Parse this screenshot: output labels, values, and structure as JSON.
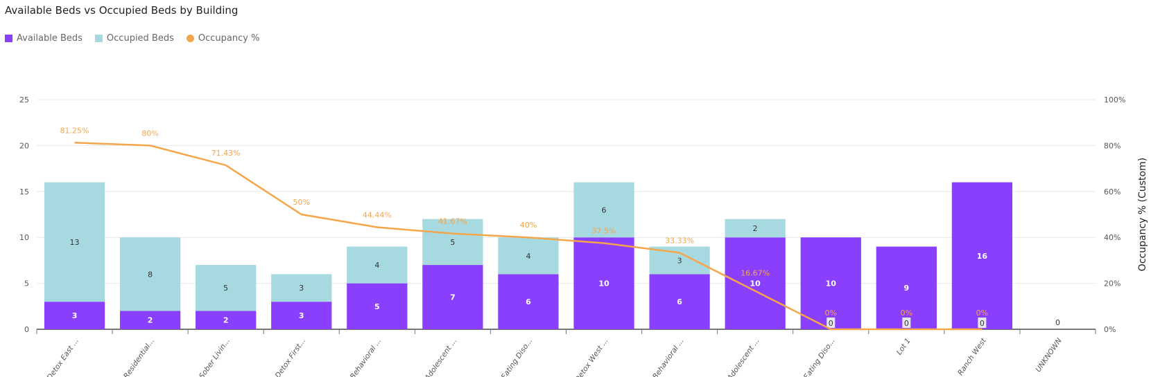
{
  "chart_data": {
    "type": "bar",
    "stacked": true,
    "title": "Available Beds vs Occupied Beds by Building",
    "xlabel": "",
    "ylabel": "",
    "y2label": "Occupancy % (Custom)",
    "ylim": [
      0,
      25
    ],
    "yticks": [
      0,
      5,
      10,
      15,
      20,
      25
    ],
    "y2lim": [
      0,
      100
    ],
    "y2ticks": [
      "0%",
      "20%",
      "40%",
      "60%",
      "80%",
      "100%"
    ],
    "grid": true,
    "legend": "top-left",
    "categories": [
      "Detox East ...",
      "Residential...",
      "Sober Livin...",
      "Detox First...",
      "Behavioral ...",
      "Adolescent ...",
      "Eating Diso...",
      "Detox West ...",
      "Behavioral ...",
      "Adolescent ...",
      "Eating Diso...",
      "Lot 1",
      "Ranch West",
      "UNKNOWN"
    ],
    "series": [
      {
        "name": "Available Beds",
        "type": "bar",
        "color": "#8a3ffc",
        "values": [
          3,
          2,
          2,
          3,
          5,
          7,
          6,
          10,
          6,
          10,
          10,
          9,
          16,
          0
        ]
      },
      {
        "name": "Occupied Beds",
        "type": "bar",
        "color": "#a6dae0",
        "values": [
          13,
          8,
          5,
          3,
          4,
          5,
          4,
          6,
          3,
          2,
          0,
          0,
          0,
          0
        ]
      },
      {
        "name": "Occupancy %",
        "type": "line",
        "axis": "right",
        "color": "#f5a54a",
        "values": [
          81.25,
          80,
          71.43,
          50,
          44.44,
          41.67,
          40,
          37.5,
          33.33,
          16.67,
          0,
          0,
          0,
          null
        ],
        "labels": [
          "81.25%",
          "80%",
          "71.43%",
          "50%",
          "44.44%",
          "41.67%",
          "40%",
          "37.5%",
          "33.33%",
          "16.67%",
          "0%",
          "0%",
          "0%",
          ""
        ]
      }
    ]
  }
}
